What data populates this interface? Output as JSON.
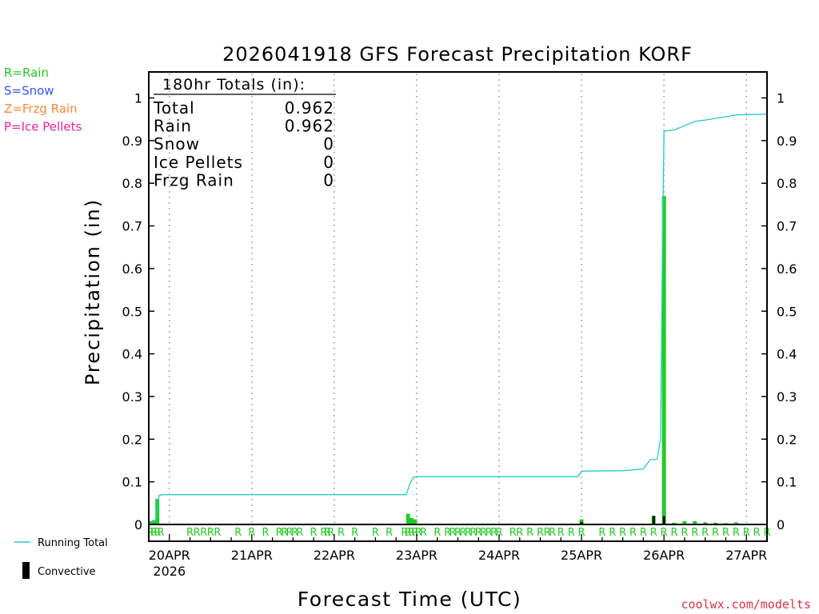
{
  "chart_data": {
    "type": "bar",
    "title": "2026041918 GFS Forecast Precipitation KORF",
    "xlabel": "Forecast Time (UTC)",
    "ylabel": "Precipitation (in)",
    "ylim": [
      0,
      1.05
    ],
    "y_ticks": [
      0,
      0.1,
      0.2,
      0.3,
      0.4,
      0.5,
      0.6,
      0.7,
      0.8,
      0.9,
      1
    ],
    "y_tick_labels": [
      "0",
      "0.1",
      "0.2",
      "0.3",
      "0.4",
      "0.5",
      "0.6",
      "0.7",
      "0.8",
      "0.9",
      "1"
    ],
    "x_unit": "hours since 2026-04-19 18Z",
    "xlim": [
      0,
      180
    ],
    "x_ticks": [
      {
        "hour": 6,
        "label": "20APR",
        "sublabel": "2026"
      },
      {
        "hour": 30,
        "label": "21APR"
      },
      {
        "hour": 54,
        "label": "22APR"
      },
      {
        "hour": 78,
        "label": "23APR"
      },
      {
        "hour": 102,
        "label": "24APR"
      },
      {
        "hour": 126,
        "label": "25APR"
      },
      {
        "hour": 150,
        "label": "26APR"
      },
      {
        "hour": 174,
        "label": "27APR"
      }
    ],
    "totals_box": {
      "heading": "180hr Totals (in):",
      "rows": [
        {
          "label": "Total",
          "value": "0.962"
        },
        {
          "label": "Rain",
          "value": "0.962"
        },
        {
          "label": "Snow",
          "value": "0"
        },
        {
          "label": "Ice Pellets",
          "value": "0"
        },
        {
          "label": "Frzg Rain",
          "value": "0"
        }
      ]
    },
    "type_legend": [
      {
        "text": "R=Rain",
        "color": "#22cc22"
      },
      {
        "text": "S=Snow",
        "color": "#3355ee"
      },
      {
        "text": "Z=Frzg Rain",
        "color": "#ff8833"
      },
      {
        "text": "P=Ice Pellets",
        "color": "#ee2299"
      }
    ],
    "bottom_legend": [
      {
        "text": "Running Total",
        "kind": "line",
        "color": "#22cccc"
      },
      {
        "text": "Convective",
        "kind": "bar",
        "color": "#000000"
      }
    ],
    "series_colors": {
      "precip": "#22cc22",
      "convective": "#000000",
      "running_total": "#22cccc",
      "type_marker": "#22cc22"
    },
    "precip_bars": [
      {
        "hour": 0.5,
        "value": 0.008
      },
      {
        "hour": 1.5,
        "value": 0.01
      },
      {
        "hour": 2.5,
        "value": 0.06
      },
      {
        "hour": 75.5,
        "value": 0.025
      },
      {
        "hour": 76.5,
        "value": 0.015
      },
      {
        "hour": 77.5,
        "value": 0.012
      },
      {
        "hour": 126,
        "value": 0.012
      },
      {
        "hour": 129,
        "value": 0.001
      },
      {
        "hour": 138,
        "value": 0.001
      },
      {
        "hour": 141,
        "value": 0.001
      },
      {
        "hour": 144,
        "value": 0.001
      },
      {
        "hour": 147,
        "value": 0.02
      },
      {
        "hour": 150,
        "value": 0.77
      },
      {
        "hour": 153,
        "value": 0.004
      },
      {
        "hour": 156,
        "value": 0.008
      },
      {
        "hour": 159,
        "value": 0.008
      },
      {
        "hour": 162,
        "value": 0.005
      },
      {
        "hour": 165,
        "value": 0.004
      },
      {
        "hour": 168,
        "value": 0.003
      },
      {
        "hour": 171,
        "value": 0.005
      },
      {
        "hour": 174,
        "value": 0.002
      }
    ],
    "convective_bars": [
      {
        "hour": 126,
        "value": 0.006
      },
      {
        "hour": 147,
        "value": 0.02
      },
      {
        "hour": 150,
        "value": 0.02
      }
    ],
    "running_total": [
      {
        "hour": 0,
        "value": 0
      },
      {
        "hour": 2,
        "value": 0.01
      },
      {
        "hour": 3,
        "value": 0.068
      },
      {
        "hour": 4,
        "value": 0.07
      },
      {
        "hour": 75,
        "value": 0.07
      },
      {
        "hour": 76,
        "value": 0.095
      },
      {
        "hour": 77,
        "value": 0.11
      },
      {
        "hour": 78,
        "value": 0.112
      },
      {
        "hour": 125,
        "value": 0.112
      },
      {
        "hour": 126,
        "value": 0.125
      },
      {
        "hour": 138,
        "value": 0.126
      },
      {
        "hour": 141,
        "value": 0.128
      },
      {
        "hour": 144,
        "value": 0.13
      },
      {
        "hour": 146,
        "value": 0.152
      },
      {
        "hour": 148,
        "value": 0.153
      },
      {
        "hour": 149,
        "value": 0.2
      },
      {
        "hour": 149.5,
        "value": 0.6
      },
      {
        "hour": 150,
        "value": 0.922
      },
      {
        "hour": 153,
        "value": 0.925
      },
      {
        "hour": 156,
        "value": 0.935
      },
      {
        "hour": 159,
        "value": 0.945
      },
      {
        "hour": 162,
        "value": 0.948
      },
      {
        "hour": 165,
        "value": 0.952
      },
      {
        "hour": 168,
        "value": 0.956
      },
      {
        "hour": 171,
        "value": 0.96
      },
      {
        "hour": 174,
        "value": 0.961
      },
      {
        "hour": 180,
        "value": 0.962
      }
    ],
    "type_marker_letter": "R",
    "type_marker_hours": [
      0.5,
      1.5,
      2.5,
      3.5,
      12,
      14,
      16,
      18,
      20,
      26,
      30,
      34,
      38,
      39.5,
      41,
      42.5,
      44,
      48,
      51,
      52,
      53,
      56,
      60,
      66,
      70,
      74.5,
      75.5,
      76.5,
      77.5,
      78.5,
      80,
      84,
      87,
      88.5,
      90,
      91.5,
      93,
      94.5,
      96,
      97.5,
      99,
      100.5,
      102,
      106,
      108,
      111,
      114,
      116,
      117.5,
      120,
      123,
      126,
      132,
      135,
      138,
      141,
      144,
      147,
      150,
      153,
      156,
      159,
      162,
      165,
      168,
      171,
      174,
      177,
      180
    ],
    "credit": "coolwx.com/modelts"
  }
}
